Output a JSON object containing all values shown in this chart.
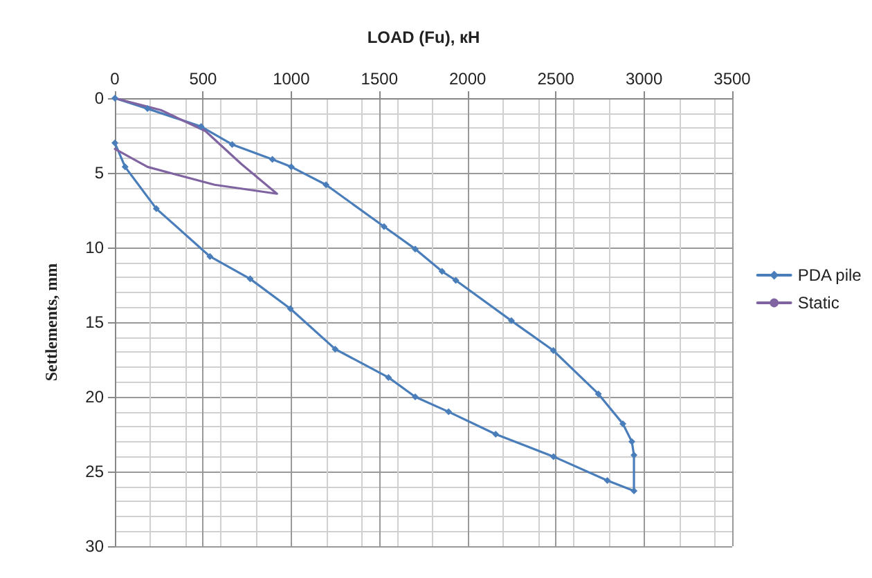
{
  "chart_data": {
    "type": "line",
    "xlabel": "LOAD (Fu), кН",
    "ylabel": "Settlements, mm",
    "xlim": [
      0,
      3500
    ],
    "xticks": [
      0,
      500,
      1000,
      1500,
      2000,
      2500,
      3000,
      3500
    ],
    "ylim": [
      30,
      0
    ],
    "yticks": [
      0,
      5,
      10,
      15,
      20,
      25,
      30
    ],
    "grid": true,
    "legend": "right",
    "marker": "diamond",
    "line_style": "solid",
    "series": [
      {
        "name": "PDA pile",
        "color": "#4a7ebb",
        "x": [
          0,
          185,
          489,
          665,
          893,
          1000,
          1197,
          1526,
          1703,
          1855,
          1933,
          2248,
          2486,
          2741,
          2880,
          2931,
          2943,
          2943,
          2792,
          2487,
          2159,
          1892,
          1703,
          1551,
          1249,
          995,
          767,
          539,
          235,
          58,
          0
        ],
        "values": [
          0,
          0.7,
          1.9,
          3.1,
          4.1,
          4.6,
          5.8,
          8.6,
          10.1,
          11.6,
          12.2,
          14.9,
          16.9,
          19.8,
          21.8,
          23.0,
          23.9,
          26.3,
          25.6,
          24.0,
          22.5,
          21.0,
          20.0,
          18.7,
          16.8,
          14.1,
          12.1,
          10.6,
          7.4,
          4.6,
          3.0
        ]
      },
      {
        "name": "Static",
        "color": "#8064a2",
        "marker": "none",
        "x": [
          0,
          261,
          513,
          716,
          919,
          565,
          185,
          0
        ],
        "values": [
          0,
          0.8,
          2.2,
          4.4,
          6.4,
          5.8,
          4.6,
          3.4
        ]
      }
    ]
  }
}
